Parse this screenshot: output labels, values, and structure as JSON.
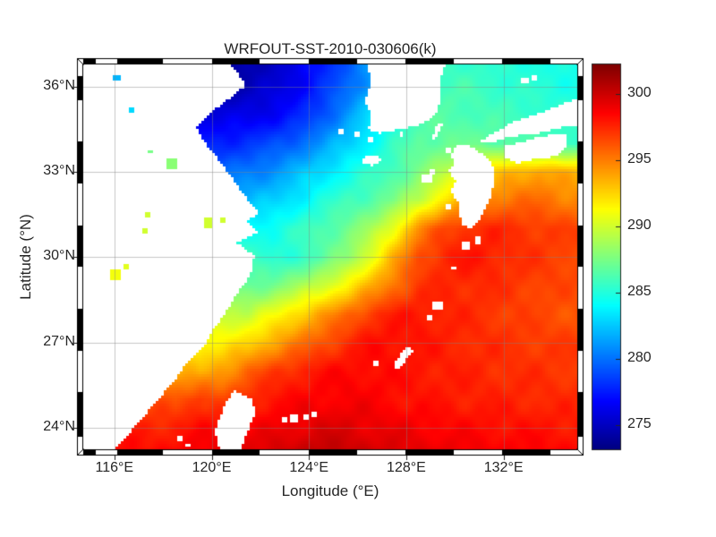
{
  "figure": {
    "title": "WRFOUT-SST-2010-030606(k)",
    "background": "#ffffff",
    "text_color": "#262626"
  },
  "axes": {
    "xlabel": "Longitude (°E)",
    "ylabel": "Latitude (°N)",
    "x_ticks": [
      {
        "value": 116,
        "label": "116°E"
      },
      {
        "value": 120,
        "label": "120°E"
      },
      {
        "value": 124,
        "label": "124°E"
      },
      {
        "value": 128,
        "label": "128°E"
      },
      {
        "value": 132,
        "label": "132°E"
      }
    ],
    "y_ticks": [
      {
        "value": 36,
        "label": "36°N"
      },
      {
        "value": 33,
        "label": "33°N"
      },
      {
        "value": 30,
        "label": "30°N"
      },
      {
        "value": 27,
        "label": "27°N"
      },
      {
        "value": 24,
        "label": "24°N"
      }
    ],
    "grid": true,
    "frame_style": "alternating-black-white"
  },
  "colorbar": {
    "colormap": "jet",
    "min": 273.2,
    "max": 302.2,
    "units": "K",
    "ticks": [
      {
        "value": 275,
        "label": "275"
      },
      {
        "value": 280,
        "label": "280"
      },
      {
        "value": 285,
        "label": "285"
      },
      {
        "value": 290,
        "label": "290"
      },
      {
        "value": 295,
        "label": "295"
      },
      {
        "value": 300,
        "label": "300"
      }
    ]
  },
  "chart_data": {
    "type": "heatmap",
    "title": "WRFOUT-SST-2010-030606(k)",
    "xlabel": "Longitude (°E)",
    "ylabel": "Latitude (°N)",
    "units": "K",
    "lon_range": [
      114.72,
      135.03
    ],
    "lat_range": [
      23.25,
      36.78
    ],
    "color_range": [
      273.2,
      302.2
    ],
    "land_color": "#ffffff",
    "grid_lons": [
      114.5,
      115.5,
      116.5,
      117.5,
      118.5,
      119.5,
      120.5,
      121.5,
      122.5,
      123.5,
      124.5,
      125.5,
      126.5,
      127.5,
      128.5,
      129.5,
      130.5,
      131.5,
      132.5,
      133.5,
      134.5,
      135.5
    ],
    "grid_lats": [
      37,
      36,
      35,
      34,
      33,
      32,
      31,
      30,
      29,
      28,
      27,
      26,
      25,
      24,
      23
    ],
    "sst": [
      [
        275.5,
        275.5,
        275.3,
        275.0,
        274.6,
        274.2,
        274.0,
        274.3,
        275.0,
        276.0,
        277.5,
        279.0,
        281.0,
        283.0,
        284.5,
        285.5,
        285.5,
        285.2,
        285.0,
        284.8,
        284.6,
        284.5
      ],
      [
        276.0,
        275.8,
        275.5,
        275.2,
        274.8,
        274.4,
        274.3,
        274.8,
        275.5,
        276.5,
        278.0,
        279.5,
        281.5,
        283.5,
        285.0,
        286.0,
        286.0,
        285.7,
        285.4,
        285.1,
        284.9,
        284.8
      ],
      [
        277.0,
        276.8,
        276.5,
        276.2,
        276.0,
        275.8,
        275.9,
        276.2,
        276.6,
        277.5,
        279.0,
        281.0,
        283.0,
        284.5,
        286.0,
        286.5,
        286.3,
        286.0,
        285.8,
        285.6,
        285.4,
        285.2
      ],
      [
        278.5,
        278.3,
        278.1,
        277.9,
        277.7,
        277.6,
        277.8,
        278.2,
        278.8,
        279.8,
        281.0,
        282.5,
        284.0,
        285.5,
        286.8,
        287.0,
        287.0,
        286.8,
        286.5,
        286.2,
        285.9,
        285.7
      ],
      [
        280.5,
        280.3,
        280.0,
        279.8,
        279.6,
        279.6,
        279.8,
        280.3,
        281.0,
        282.0,
        283.2,
        284.3,
        285.3,
        286.3,
        287.5,
        289.0,
        291.0,
        292.5,
        293.5,
        294.0,
        293.5,
        293.0
      ],
      [
        282.5,
        282.3,
        282.0,
        281.8,
        281.6,
        281.6,
        281.8,
        282.2,
        282.6,
        283.6,
        284.8,
        285.8,
        286.5,
        287.5,
        289.5,
        292.0,
        294.0,
        295.0,
        295.5,
        295.5,
        295.0,
        294.8
      ],
      [
        284.5,
        284.3,
        284.0,
        283.8,
        283.6,
        283.6,
        283.8,
        284.2,
        284.6,
        285.4,
        286.3,
        287.2,
        288.5,
        291.0,
        294.5,
        296.5,
        297.3,
        297.5,
        297.3,
        297.0,
        296.7,
        296.5
      ],
      [
        286.5,
        286.3,
        286.0,
        285.8,
        285.6,
        285.6,
        285.8,
        286.0,
        284.9,
        285.5,
        286.5,
        288.0,
        290.5,
        293.5,
        296.5,
        297.5,
        298.0,
        297.8,
        297.3,
        297.0,
        296.8,
        296.6
      ],
      [
        289.0,
        288.7,
        288.4,
        288.0,
        287.6,
        287.4,
        287.2,
        287.0,
        287.5,
        288.5,
        290.0,
        291.5,
        293.5,
        295.5,
        297.0,
        297.5,
        297.5,
        297.3,
        297.0,
        296.8,
        296.5,
        296.3
      ],
      [
        291.5,
        291.2,
        291.0,
        290.6,
        290.2,
        290.0,
        289.8,
        289.5,
        291.0,
        292.5,
        294.0,
        295.5,
        297.0,
        297.8,
        298.0,
        297.7,
        297.4,
        297.1,
        296.8,
        296.5,
        296.3,
        296.2
      ],
      [
        293.5,
        293.2,
        293.0,
        292.6,
        292.2,
        291.5,
        291.5,
        292.5,
        293.8,
        295.0,
        296.3,
        297.3,
        298.2,
        298.3,
        298.0,
        297.7,
        297.5,
        297.3,
        297.1,
        297.0,
        296.9,
        296.8
      ],
      [
        295.5,
        295.2,
        295.0,
        294.6,
        293.8,
        293.2,
        294.3,
        295.8,
        296.8,
        297.6,
        298.2,
        298.4,
        298.4,
        298.2,
        298.0,
        297.8,
        297.6,
        297.4,
        297.3,
        297.2,
        297.1,
        297.0
      ],
      [
        297.2,
        297.0,
        296.8,
        296.4,
        296.0,
        297.3,
        296.5,
        297.5,
        298.2,
        298.5,
        298.6,
        298.8,
        298.6,
        298.3,
        298.1,
        297.9,
        297.8,
        297.7,
        297.6,
        297.5,
        297.4,
        297.3
      ],
      [
        298.3,
        298.1,
        297.9,
        297.6,
        297.9,
        298.3,
        298.5,
        298.6,
        298.9,
        299.2,
        299.5,
        299.5,
        299.2,
        299.0,
        298.8,
        298.6,
        298.4,
        298.3,
        298.2,
        298.1,
        298.0,
        297.9
      ],
      [
        299.0,
        298.8,
        298.6,
        298.4,
        298.6,
        299.0,
        299.2,
        299.5,
        299.8,
        300.2,
        300.6,
        300.4,
        300.0,
        299.7,
        299.4,
        299.2,
        299.0,
        298.9,
        298.8,
        298.7,
        298.6,
        298.5
      ]
    ],
    "land_polygons": {
      "china_coast": [
        [
          114.7,
          36.9
        ],
        [
          120.6,
          36.9
        ],
        [
          121.1,
          36.45
        ],
        [
          121.4,
          36.05
        ],
        [
          120.7,
          35.55
        ],
        [
          119.9,
          35.05
        ],
        [
          119.4,
          34.55
        ],
        [
          119.7,
          34.05
        ],
        [
          120.3,
          33.4
        ],
        [
          120.9,
          32.7
        ],
        [
          121.5,
          32.0
        ],
        [
          121.95,
          31.6
        ],
        [
          121.5,
          31.25
        ],
        [
          121.9,
          30.85
        ],
        [
          121.0,
          30.5
        ],
        [
          121.75,
          30.05
        ],
        [
          121.6,
          29.4
        ],
        [
          121.1,
          28.8
        ],
        [
          120.6,
          28.1
        ],
        [
          120.0,
          27.4
        ],
        [
          119.7,
          26.9
        ],
        [
          119.0,
          26.3
        ],
        [
          118.4,
          25.6
        ],
        [
          117.6,
          24.8
        ],
        [
          116.9,
          24.1
        ],
        [
          116.3,
          23.5
        ],
        [
          115.9,
          23.1
        ],
        [
          114.6,
          23.1
        ]
      ],
      "korea": [
        [
          126.3,
          36.9
        ],
        [
          126.6,
          36.2
        ],
        [
          126.3,
          35.5
        ],
        [
          126.6,
          34.9
        ],
        [
          126.4,
          34.5
        ],
        [
          126.9,
          34.35
        ],
        [
          127.5,
          34.45
        ],
        [
          128.1,
          34.55
        ],
        [
          128.7,
          34.7
        ],
        [
          129.2,
          35.0
        ],
        [
          129.45,
          35.6
        ],
        [
          129.4,
          36.2
        ],
        [
          129.65,
          36.9
        ]
      ],
      "jeju": [
        [
          126.15,
          33.45
        ],
        [
          126.5,
          33.58
        ],
        [
          126.9,
          33.5
        ],
        [
          126.95,
          33.35
        ],
        [
          126.55,
          33.22
        ],
        [
          126.2,
          33.28
        ]
      ],
      "tsushima": [
        [
          129.15,
          34.1
        ],
        [
          129.4,
          34.55
        ],
        [
          129.5,
          34.72
        ],
        [
          129.32,
          34.75
        ],
        [
          129.12,
          34.35
        ],
        [
          129.0,
          34.12
        ]
      ],
      "kyushu": [
        [
          129.95,
          33.3
        ],
        [
          129.75,
          33.0
        ],
        [
          130.05,
          32.7
        ],
        [
          129.85,
          32.3
        ],
        [
          130.15,
          31.9
        ],
        [
          130.25,
          31.2
        ],
        [
          130.65,
          30.95
        ],
        [
          131.05,
          31.35
        ],
        [
          131.5,
          32.15
        ],
        [
          131.65,
          32.9
        ],
        [
          131.45,
          33.4
        ],
        [
          131.05,
          33.65
        ],
        [
          130.55,
          33.95
        ],
        [
          130.05,
          33.9
        ],
        [
          129.85,
          33.6
        ]
      ],
      "shikoku": [
        [
          132.0,
          33.9
        ],
        [
          132.75,
          34.05
        ],
        [
          133.6,
          34.25
        ],
        [
          134.55,
          34.35
        ],
        [
          134.65,
          33.9
        ],
        [
          134.2,
          33.55
        ],
        [
          133.3,
          33.45
        ],
        [
          132.55,
          33.3
        ],
        [
          132.1,
          33.5
        ]
      ],
      "honshu_west": [
        [
          130.85,
          34.0
        ],
        [
          131.6,
          34.35
        ],
        [
          132.4,
          34.75
        ],
        [
          133.3,
          35.0
        ],
        [
          134.2,
          35.3
        ],
        [
          135.1,
          35.6
        ],
        [
          135.1,
          34.65
        ],
        [
          134.6,
          34.6
        ],
        [
          133.9,
          34.45
        ],
        [
          133.05,
          34.3
        ],
        [
          132.3,
          34.25
        ],
        [
          131.4,
          34.0
        ]
      ],
      "taiwan": [
        [
          120.9,
          25.32
        ],
        [
          121.65,
          25.02
        ],
        [
          121.8,
          24.55
        ],
        [
          121.45,
          23.8
        ],
        [
          121.1,
          23.1
        ],
        [
          120.35,
          23.1
        ],
        [
          120.15,
          23.9
        ],
        [
          120.5,
          24.75
        ]
      ],
      "okinawa": [
        [
          127.6,
          26.05
        ],
        [
          127.95,
          26.35
        ],
        [
          128.3,
          26.75
        ],
        [
          128.05,
          26.9
        ],
        [
          127.7,
          26.5
        ],
        [
          127.45,
          26.18
        ]
      ]
    },
    "island_dots": [
      [
        125.95,
        34.3,
        0.12
      ],
      [
        126.5,
        34.12,
        0.12
      ],
      [
        127.8,
        34.3,
        0.1
      ],
      [
        125.3,
        34.4,
        0.1
      ],
      [
        129.7,
        33.75,
        0.12
      ],
      [
        128.85,
        32.75,
        0.18
      ],
      [
        129.05,
        33.0,
        0.14
      ],
      [
        129.75,
        31.75,
        0.12
      ],
      [
        130.45,
        30.4,
        0.2
      ],
      [
        130.95,
        30.6,
        0.16
      ],
      [
        129.95,
        29.65,
        0.1
      ],
      [
        129.3,
        28.3,
        0.22
      ],
      [
        128.95,
        27.85,
        0.12
      ],
      [
        126.75,
        26.3,
        0.12
      ],
      [
        123.0,
        24.3,
        0.1
      ],
      [
        123.4,
        24.35,
        0.16
      ],
      [
        123.85,
        24.4,
        0.12
      ],
      [
        124.25,
        24.5,
        0.12
      ],
      [
        118.7,
        23.6,
        0.14
      ],
      [
        119.0,
        23.4,
        0.1
      ],
      [
        132.9,
        36.2,
        0.15
      ],
      [
        133.3,
        36.28,
        0.1
      ]
    ],
    "lakes": [
      [
        116.1,
        36.3,
        282,
        0.12
      ],
      [
        116.75,
        35.2,
        283,
        0.12
      ],
      [
        118.35,
        33.3,
        288,
        0.22
      ],
      [
        117.5,
        33.7,
        287.5,
        0.1
      ],
      [
        119.85,
        31.2,
        290,
        0.2
      ],
      [
        120.5,
        31.3,
        290,
        0.1
      ],
      [
        117.4,
        31.5,
        290,
        0.12
      ],
      [
        116.0,
        29.4,
        291,
        0.22
      ],
      [
        116.5,
        29.7,
        290.5,
        0.1
      ],
      [
        117.3,
        30.9,
        290,
        0.12
      ]
    ]
  }
}
